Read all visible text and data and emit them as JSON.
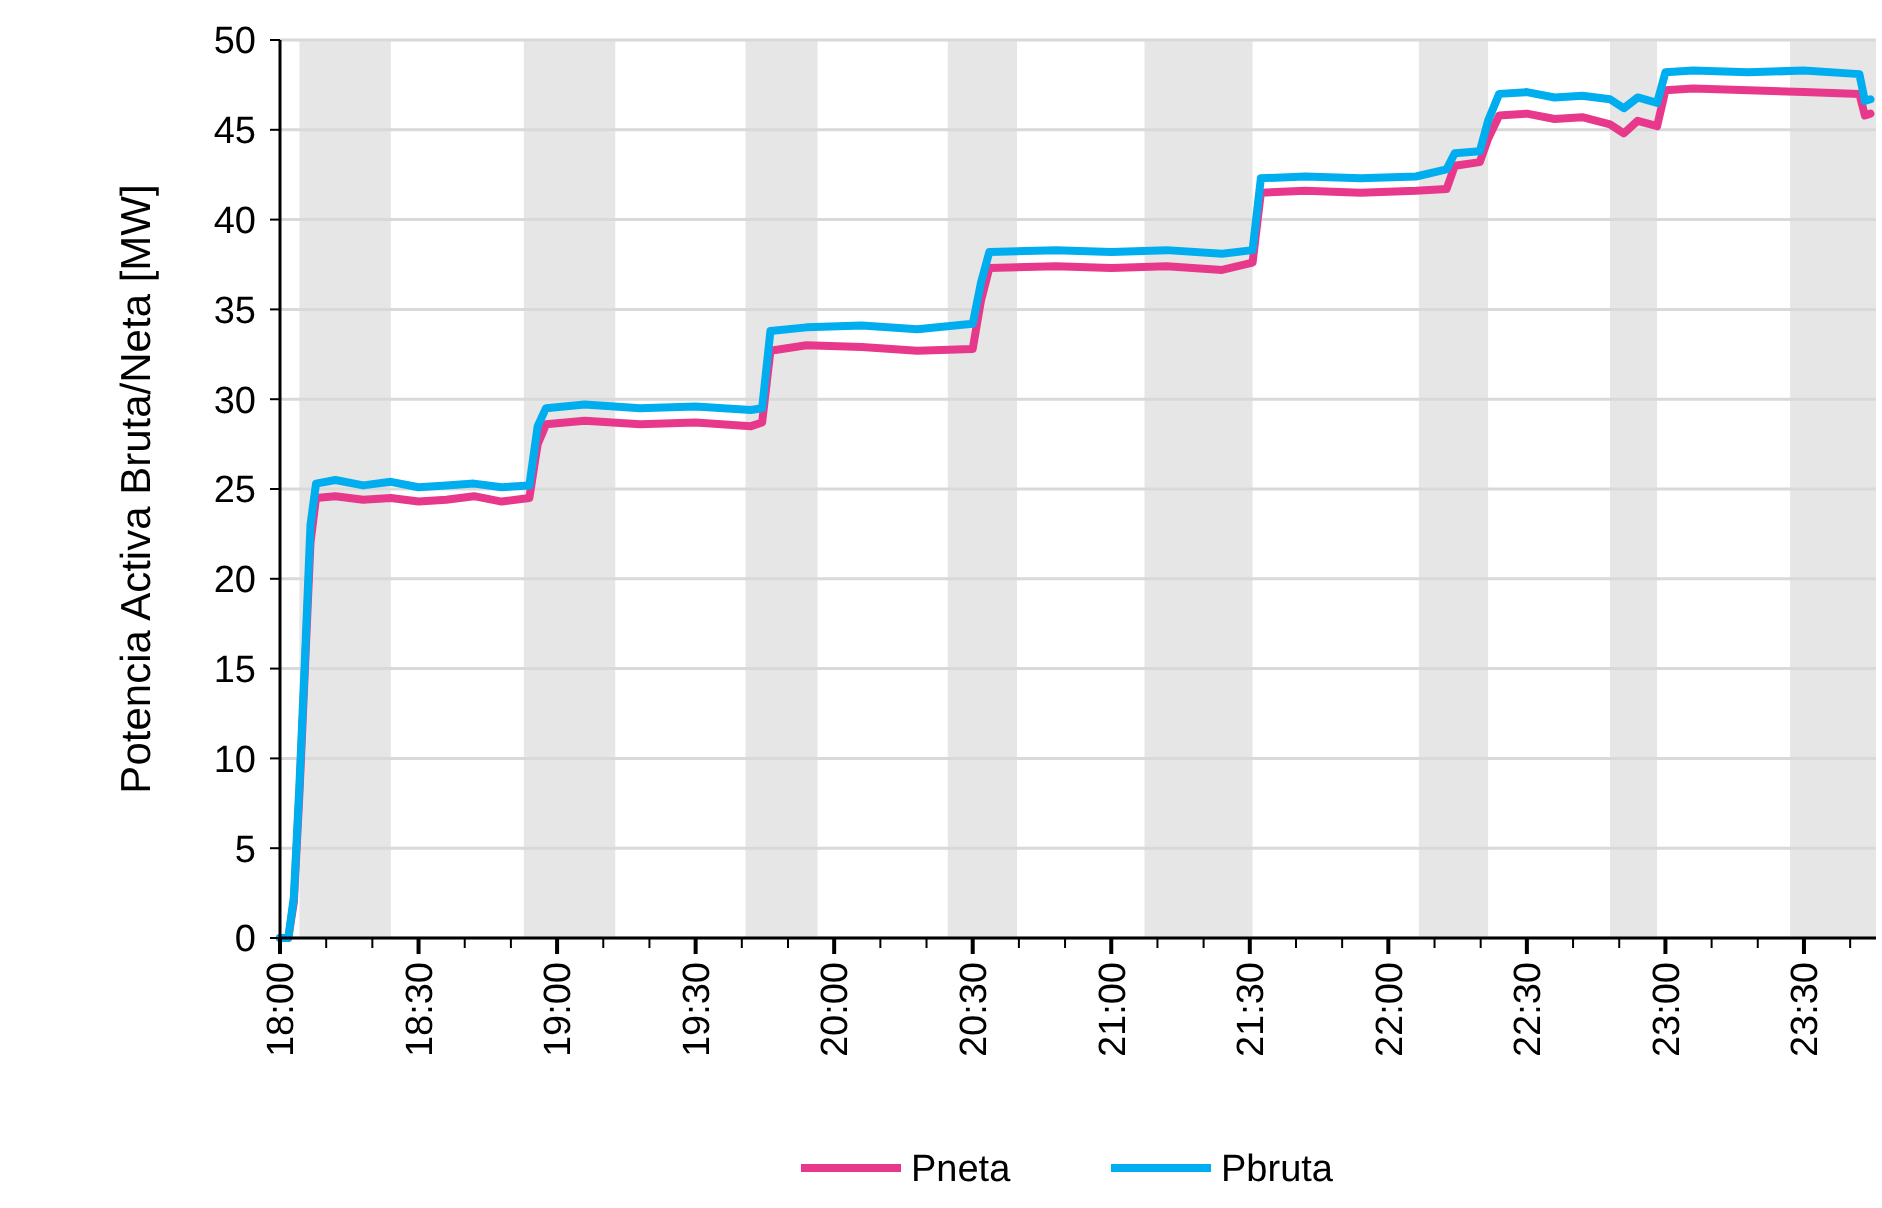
{
  "chart_data": {
    "type": "line",
    "ylabel": "Potencia Activa Bruta/Neta [MW]",
    "xlim": [
      18,
      23.76
    ],
    "ylim": [
      0,
      50
    ],
    "yticks": [
      0,
      5,
      10,
      15,
      20,
      25,
      30,
      35,
      40,
      45,
      50
    ],
    "xticks": [
      {
        "value": 18,
        "label": "18:00"
      },
      {
        "value": 18.1667,
        "label": null
      },
      {
        "value": 18.3333,
        "label": null
      },
      {
        "value": 18.5,
        "label": "18:30"
      },
      {
        "value": 18.6667,
        "label": null
      },
      {
        "value": 18.8333,
        "label": null
      },
      {
        "value": 19,
        "label": "19:00"
      },
      {
        "value": 19.1667,
        "label": null
      },
      {
        "value": 19.3333,
        "label": null
      },
      {
        "value": 19.5,
        "label": "19:30"
      },
      {
        "value": 19.6667,
        "label": null
      },
      {
        "value": 19.8333,
        "label": null
      },
      {
        "value": 20,
        "label": "20:00"
      },
      {
        "value": 20.1667,
        "label": null
      },
      {
        "value": 20.3333,
        "label": null
      },
      {
        "value": 20.5,
        "label": "20:30"
      },
      {
        "value": 20.6667,
        "label": null
      },
      {
        "value": 20.8333,
        "label": null
      },
      {
        "value": 21,
        "label": "21:00"
      },
      {
        "value": 21.1667,
        "label": null
      },
      {
        "value": 21.3333,
        "label": null
      },
      {
        "value": 21.5,
        "label": "21:30"
      },
      {
        "value": 21.6667,
        "label": null
      },
      {
        "value": 21.8333,
        "label": null
      },
      {
        "value": 22,
        "label": "22:00"
      },
      {
        "value": 22.1667,
        "label": null
      },
      {
        "value": 22.3333,
        "label": null
      },
      {
        "value": 22.5,
        "label": "22:30"
      },
      {
        "value": 22.6667,
        "label": null
      },
      {
        "value": 22.8333,
        "label": null
      },
      {
        "value": 23,
        "label": "23:00"
      },
      {
        "value": 23.1667,
        "label": null
      },
      {
        "value": 23.3333,
        "label": null
      },
      {
        "value": 23.5,
        "label": "23:30"
      },
      {
        "value": 23.6667,
        "label": null
      }
    ],
    "grid": "y",
    "legend": "bottom",
    "bands": [
      {
        "axis": "x",
        "from": 18.07,
        "to": 18.4,
        "color": "#e6e6e6"
      },
      {
        "axis": "x",
        "from": 18.88,
        "to": 19.21,
        "color": "#e6e6e6"
      },
      {
        "axis": "x",
        "from": 19.68,
        "to": 19.94,
        "color": "#e6e6e6"
      },
      {
        "axis": "x",
        "from": 20.41,
        "to": 20.66,
        "color": "#e6e6e6"
      },
      {
        "axis": "x",
        "from": 21.12,
        "to": 21.51,
        "color": "#e6e6e6"
      },
      {
        "axis": "x",
        "from": 22.11,
        "to": 22.36,
        "color": "#e6e6e6"
      },
      {
        "axis": "x",
        "from": 22.8,
        "to": 22.97,
        "color": "#e6e6e6"
      },
      {
        "axis": "x",
        "from": 23.45,
        "to": 23.76,
        "color": "#e6e6e6"
      }
    ],
    "x": [
      18,
      18.03,
      18.05,
      18.07,
      18.09,
      18.11,
      18.13,
      18.2,
      18.3,
      18.4,
      18.5,
      18.6,
      18.7,
      18.8,
      18.9,
      18.93,
      18.96,
      19.1,
      19.3,
      19.5,
      19.7,
      19.74,
      19.77,
      19.9,
      20.1,
      20.3,
      20.5,
      20.53,
      20.56,
      20.8,
      21.0,
      21.2,
      21.4,
      21.51,
      21.54,
      21.7,
      21.9,
      22.1,
      22.21,
      22.24,
      22.33,
      22.36,
      22.4,
      22.5,
      22.6,
      22.7,
      22.8,
      22.85,
      22.9,
      22.97,
      23.0,
      23.1,
      23.3,
      23.5,
      23.7,
      23.72,
      23.74
    ],
    "series": [
      {
        "name": "Pneta",
        "color": "#e8388c",
        "values": [
          0,
          0,
          2,
          8,
          15,
          22,
          24.5,
          24.6,
          24.4,
          24.5,
          24.3,
          24.4,
          24.6,
          24.3,
          24.5,
          27.5,
          28.6,
          28.8,
          28.6,
          28.7,
          28.5,
          28.7,
          32.7,
          33,
          32.9,
          32.7,
          32.8,
          35.5,
          37.3,
          37.4,
          37.3,
          37.4,
          37.2,
          37.6,
          41.5,
          41.6,
          41.5,
          41.6,
          41.7,
          43,
          43.2,
          44.5,
          45.8,
          45.9,
          45.6,
          45.7,
          45.3,
          44.8,
          45.5,
          45.2,
          47.2,
          47.3,
          47.2,
          47.1,
          47.0,
          45.8,
          45.9
        ]
      },
      {
        "name": "Pbruta",
        "color": "#00aeef",
        "values": [
          0,
          0,
          2.3,
          8.5,
          15.5,
          23,
          25.3,
          25.5,
          25.2,
          25.4,
          25.1,
          25.2,
          25.3,
          25.1,
          25.2,
          28.5,
          29.5,
          29.7,
          29.5,
          29.6,
          29.4,
          29.5,
          33.8,
          34,
          34.1,
          33.9,
          34.2,
          36.5,
          38.2,
          38.3,
          38.2,
          38.3,
          38.1,
          38.3,
          42.3,
          42.4,
          42.3,
          42.4,
          42.8,
          43.7,
          43.8,
          45.5,
          47,
          47.1,
          46.8,
          46.9,
          46.7,
          46.2,
          46.8,
          46.5,
          48.2,
          48.3,
          48.2,
          48.3,
          48.1,
          46.6,
          46.7
        ]
      }
    ]
  }
}
